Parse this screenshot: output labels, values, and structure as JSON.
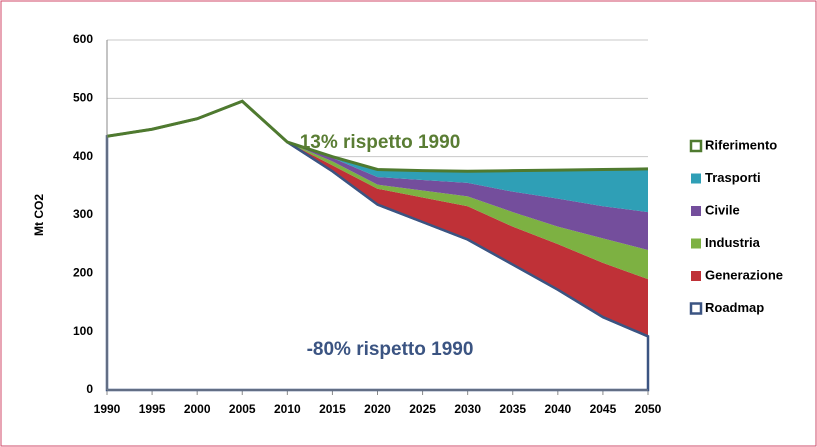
{
  "chart_data": {
    "type": "stacked_area",
    "y_label": "Mt CO2",
    "x": [
      1990,
      1995,
      2000,
      2005,
      2010,
      2015,
      2020,
      2025,
      2030,
      2035,
      2040,
      2045,
      2050
    ],
    "xlim": [
      1990,
      2050
    ],
    "xticks": [
      1990,
      1995,
      2000,
      2005,
      2010,
      2015,
      2020,
      2025,
      2030,
      2035,
      2040,
      2045,
      2050
    ],
    "ylim": [
      0,
      600
    ],
    "yticks": [
      0,
      100,
      200,
      300,
      400,
      500,
      600
    ],
    "grid": true,
    "series": [
      {
        "name": "Riferimento",
        "color": "#4f7a2f",
        "kind": "line",
        "values": [
          435,
          447,
          465,
          495,
          425,
          400,
          378,
          376,
          375,
          376,
          377,
          378,
          379
        ]
      },
      {
        "name": "Trasporti",
        "color": "#2f9fb6",
        "kind": "stack",
        "values": [
          null,
          null,
          null,
          null,
          0,
          2,
          13,
          16,
          20,
          36,
          49,
          63,
          74
        ]
      },
      {
        "name": "Civile",
        "color": "#744e9c",
        "kind": "stack",
        "values": [
          null,
          null,
          null,
          null,
          0,
          6,
          13,
          18,
          23,
          35,
          48,
          55,
          65
        ]
      },
      {
        "name": "Industria",
        "color": "#7db142",
        "kind": "stack",
        "values": [
          null,
          null,
          null,
          null,
          0,
          7,
          7,
          12,
          17,
          25,
          30,
          42,
          50
        ]
      },
      {
        "name": "Generazione",
        "color": "#bf3137",
        "kind": "stack",
        "values": [
          null,
          null,
          null,
          null,
          0,
          10,
          27,
          42,
          57,
          65,
          78,
          93,
          98
        ]
      },
      {
        "name": "Roadmap",
        "color": "#3b5482",
        "kind": "base",
        "values": [
          435,
          447,
          465,
          495,
          425,
          375,
          318,
          288,
          258,
          215,
          172,
          125,
          92
        ]
      }
    ],
    "annotations": [
      {
        "text": "13% rispetto 1990",
        "color": "#5a7d34"
      },
      {
        "text": "-80% rispetto 1990",
        "color": "#3b5482"
      }
    ],
    "legend": "right"
  }
}
